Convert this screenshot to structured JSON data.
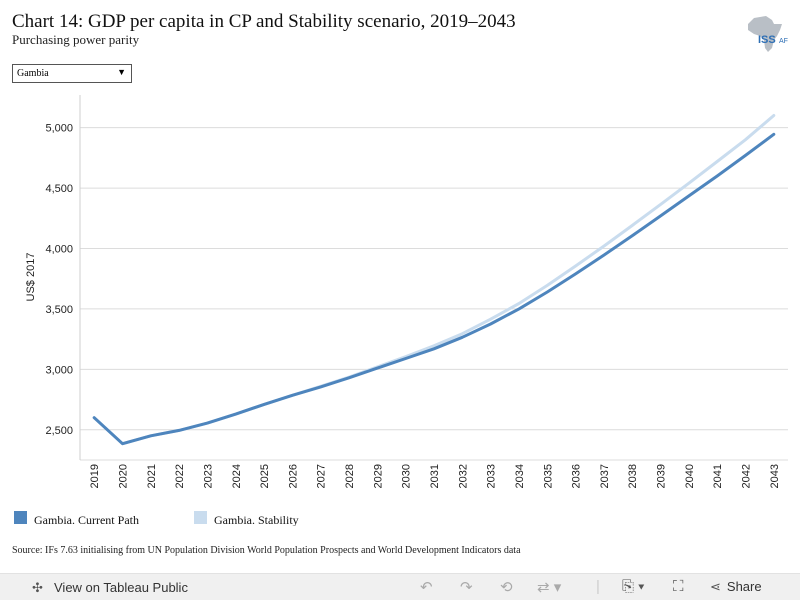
{
  "header": {
    "title": "Chart 14: GDP per capita in CP and Stability scenario, 2019–2043",
    "subtitle": "Purchasing power parity",
    "logo_text": "ISS",
    "logo_suffix": "AF"
  },
  "filter": {
    "selected": "Gambia"
  },
  "chart_data": {
    "type": "line",
    "x": [
      2019,
      2020,
      2021,
      2022,
      2023,
      2024,
      2025,
      2026,
      2027,
      2028,
      2029,
      2030,
      2031,
      2032,
      2033,
      2034,
      2035,
      2036,
      2037,
      2038,
      2039,
      2040,
      2041,
      2042,
      2043
    ],
    "x_tick_labels": [
      "2019",
      "2020",
      "2021",
      "2022",
      "2023",
      "2024",
      "2025",
      "2026",
      "2027",
      "2028",
      "2029",
      "2030",
      "2031",
      "2032",
      "2033",
      "2034",
      "2035",
      "2036",
      "2037",
      "2038",
      "2039",
      "2040",
      "2041",
      "2042",
      "2043"
    ],
    "ylabel": "US$ 2017",
    "ylim": [
      2250,
      5270
    ],
    "y_ticks": [
      2500,
      3000,
      3500,
      4000,
      4500,
      5000
    ],
    "y_tick_labels": [
      "2,500",
      "3,000",
      "3,500",
      "4,000",
      "4,500",
      "5,000"
    ],
    "grid": true,
    "legend_position": "bottom-left",
    "series": [
      {
        "name": "Gambia. Current Path",
        "color": "#4e85bd",
        "values": [
          2600,
          2385,
          2450,
          2495,
          2555,
          2630,
          2710,
          2785,
          2855,
          2930,
          3010,
          3090,
          3170,
          3265,
          3375,
          3500,
          3640,
          3790,
          3945,
          4105,
          4270,
          4435,
          4600,
          4770,
          4945
        ]
      },
      {
        "name": "Gambia. Stability",
        "color": "#c9dcee",
        "values": [
          2600,
          2385,
          2450,
          2495,
          2555,
          2630,
          2710,
          2785,
          2860,
          2935,
          3020,
          3105,
          3195,
          3295,
          3415,
          3545,
          3695,
          3855,
          4020,
          4190,
          4365,
          4540,
          4720,
          4900,
          5100
        ]
      }
    ]
  },
  "legend": {
    "items": [
      {
        "label": "Gambia. Current Path",
        "color": "#4e85bd"
      },
      {
        "label": "Gambia. Stability",
        "color": "#c9dcee"
      }
    ]
  },
  "source": "Source: IFs 7.63 initialising from UN Population Division World Population Prospects and World Development Indicators data",
  "footer": {
    "view_label": "View on Tableau Public",
    "share_label": "Share",
    "icons": [
      "tableau-icon",
      "undo-icon",
      "redo-icon",
      "revert-icon",
      "refresh-icon",
      "download-icon",
      "fullscreen-icon",
      "share-icon"
    ]
  }
}
